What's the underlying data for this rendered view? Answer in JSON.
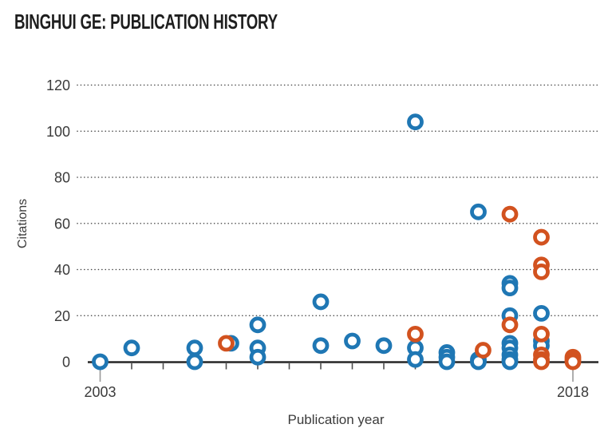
{
  "header": {
    "title": "BINGHUI GE: PUBLICATION HISTORY"
  },
  "colors": {
    "blue_marker": "#1f77b4",
    "orange_marker": "#d2521f",
    "axis": "#262626",
    "grid_dots": "#4a4a4a",
    "tick_text": "#3b3b3b"
  },
  "chart_data": {
    "type": "scatter",
    "title": "BINGHUI GE: PUBLICATION HISTORY",
    "xlabel": "Publication year",
    "ylabel": "Citations",
    "xlim": [
      2002.6,
      2018.8
    ],
    "ylim": [
      0,
      126
    ],
    "y_ticks": [
      0,
      20,
      40,
      60,
      80,
      100,
      120
    ],
    "x_tick_years": [
      2003,
      2004,
      2005,
      2006,
      2007,
      2008,
      2009,
      2010,
      2011,
      2012,
      2013,
      2014,
      2015,
      2016,
      2017,
      2018
    ],
    "x_labeled_ticks": [
      2003,
      2018
    ],
    "grid": "horizontal dotted lines at each y tick above 0",
    "legend": "none",
    "marker_style": "open circle (white fill, colored ring)",
    "series": [
      {
        "name": "series-blue",
        "color": "#1f77b4",
        "points": [
          [
            2003,
            0
          ],
          [
            2004,
            6
          ],
          [
            2006,
            6
          ],
          [
            2006,
            0
          ],
          [
            2007.15,
            8
          ],
          [
            2008,
            16
          ],
          [
            2008,
            6
          ],
          [
            2008,
            2
          ],
          [
            2010,
            26
          ],
          [
            2010,
            7
          ],
          [
            2011,
            9
          ],
          [
            2012,
            7
          ],
          [
            2013,
            104
          ],
          [
            2013,
            6
          ],
          [
            2013,
            1
          ],
          [
            2014,
            4
          ],
          [
            2014,
            2
          ],
          [
            2014,
            0
          ],
          [
            2015,
            65
          ],
          [
            2015,
            1
          ],
          [
            2015,
            0
          ],
          [
            2016,
            34
          ],
          [
            2016,
            32
          ],
          [
            2016,
            20
          ],
          [
            2016,
            8
          ],
          [
            2016,
            6
          ],
          [
            2016,
            3
          ],
          [
            2016,
            1
          ],
          [
            2016,
            0
          ],
          [
            2017,
            21
          ],
          [
            2017,
            9
          ],
          [
            2017,
            7
          ]
        ]
      },
      {
        "name": "series-orange",
        "color": "#d2521f",
        "points": [
          [
            2007,
            8
          ],
          [
            2013,
            12
          ],
          [
            2015.15,
            5
          ],
          [
            2016,
            64
          ],
          [
            2016,
            16
          ],
          [
            2017,
            54
          ],
          [
            2017,
            42
          ],
          [
            2017,
            39
          ],
          [
            2017,
            12
          ],
          [
            2017,
            3
          ],
          [
            2017,
            1
          ],
          [
            2017,
            0
          ],
          [
            2018,
            2
          ],
          [
            2018,
            1
          ],
          [
            2018,
            0
          ]
        ]
      }
    ]
  }
}
